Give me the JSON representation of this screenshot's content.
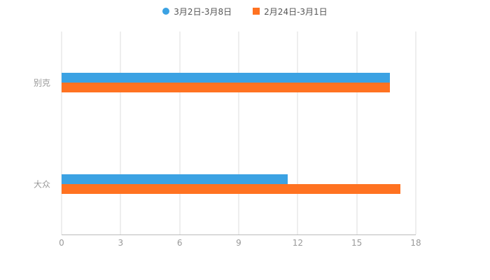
{
  "chart_data": {
    "type": "bar",
    "orientation": "horizontal",
    "title": "",
    "categories": [
      "别克",
      "大众"
    ],
    "series": [
      {
        "name": "3月2日-3月8日",
        "color": "#3BA2E3",
        "marker": "circle",
        "values": [
          16.7,
          11.5
        ]
      },
      {
        "name": "2月24日-3月1日",
        "color": "#FF7221",
        "marker": "square",
        "values": [
          16.7,
          17.2
        ]
      }
    ],
    "xlim": [
      0,
      18
    ],
    "xticks": [
      0,
      3,
      6,
      9,
      12,
      15,
      18
    ],
    "grid": true,
    "legend_position": "top-center",
    "background_color": "#FFFFFF"
  },
  "legend": {
    "items": [
      {
        "label": "3月2日-3月8日"
      },
      {
        "label": "2月24日-3月1日"
      }
    ]
  }
}
